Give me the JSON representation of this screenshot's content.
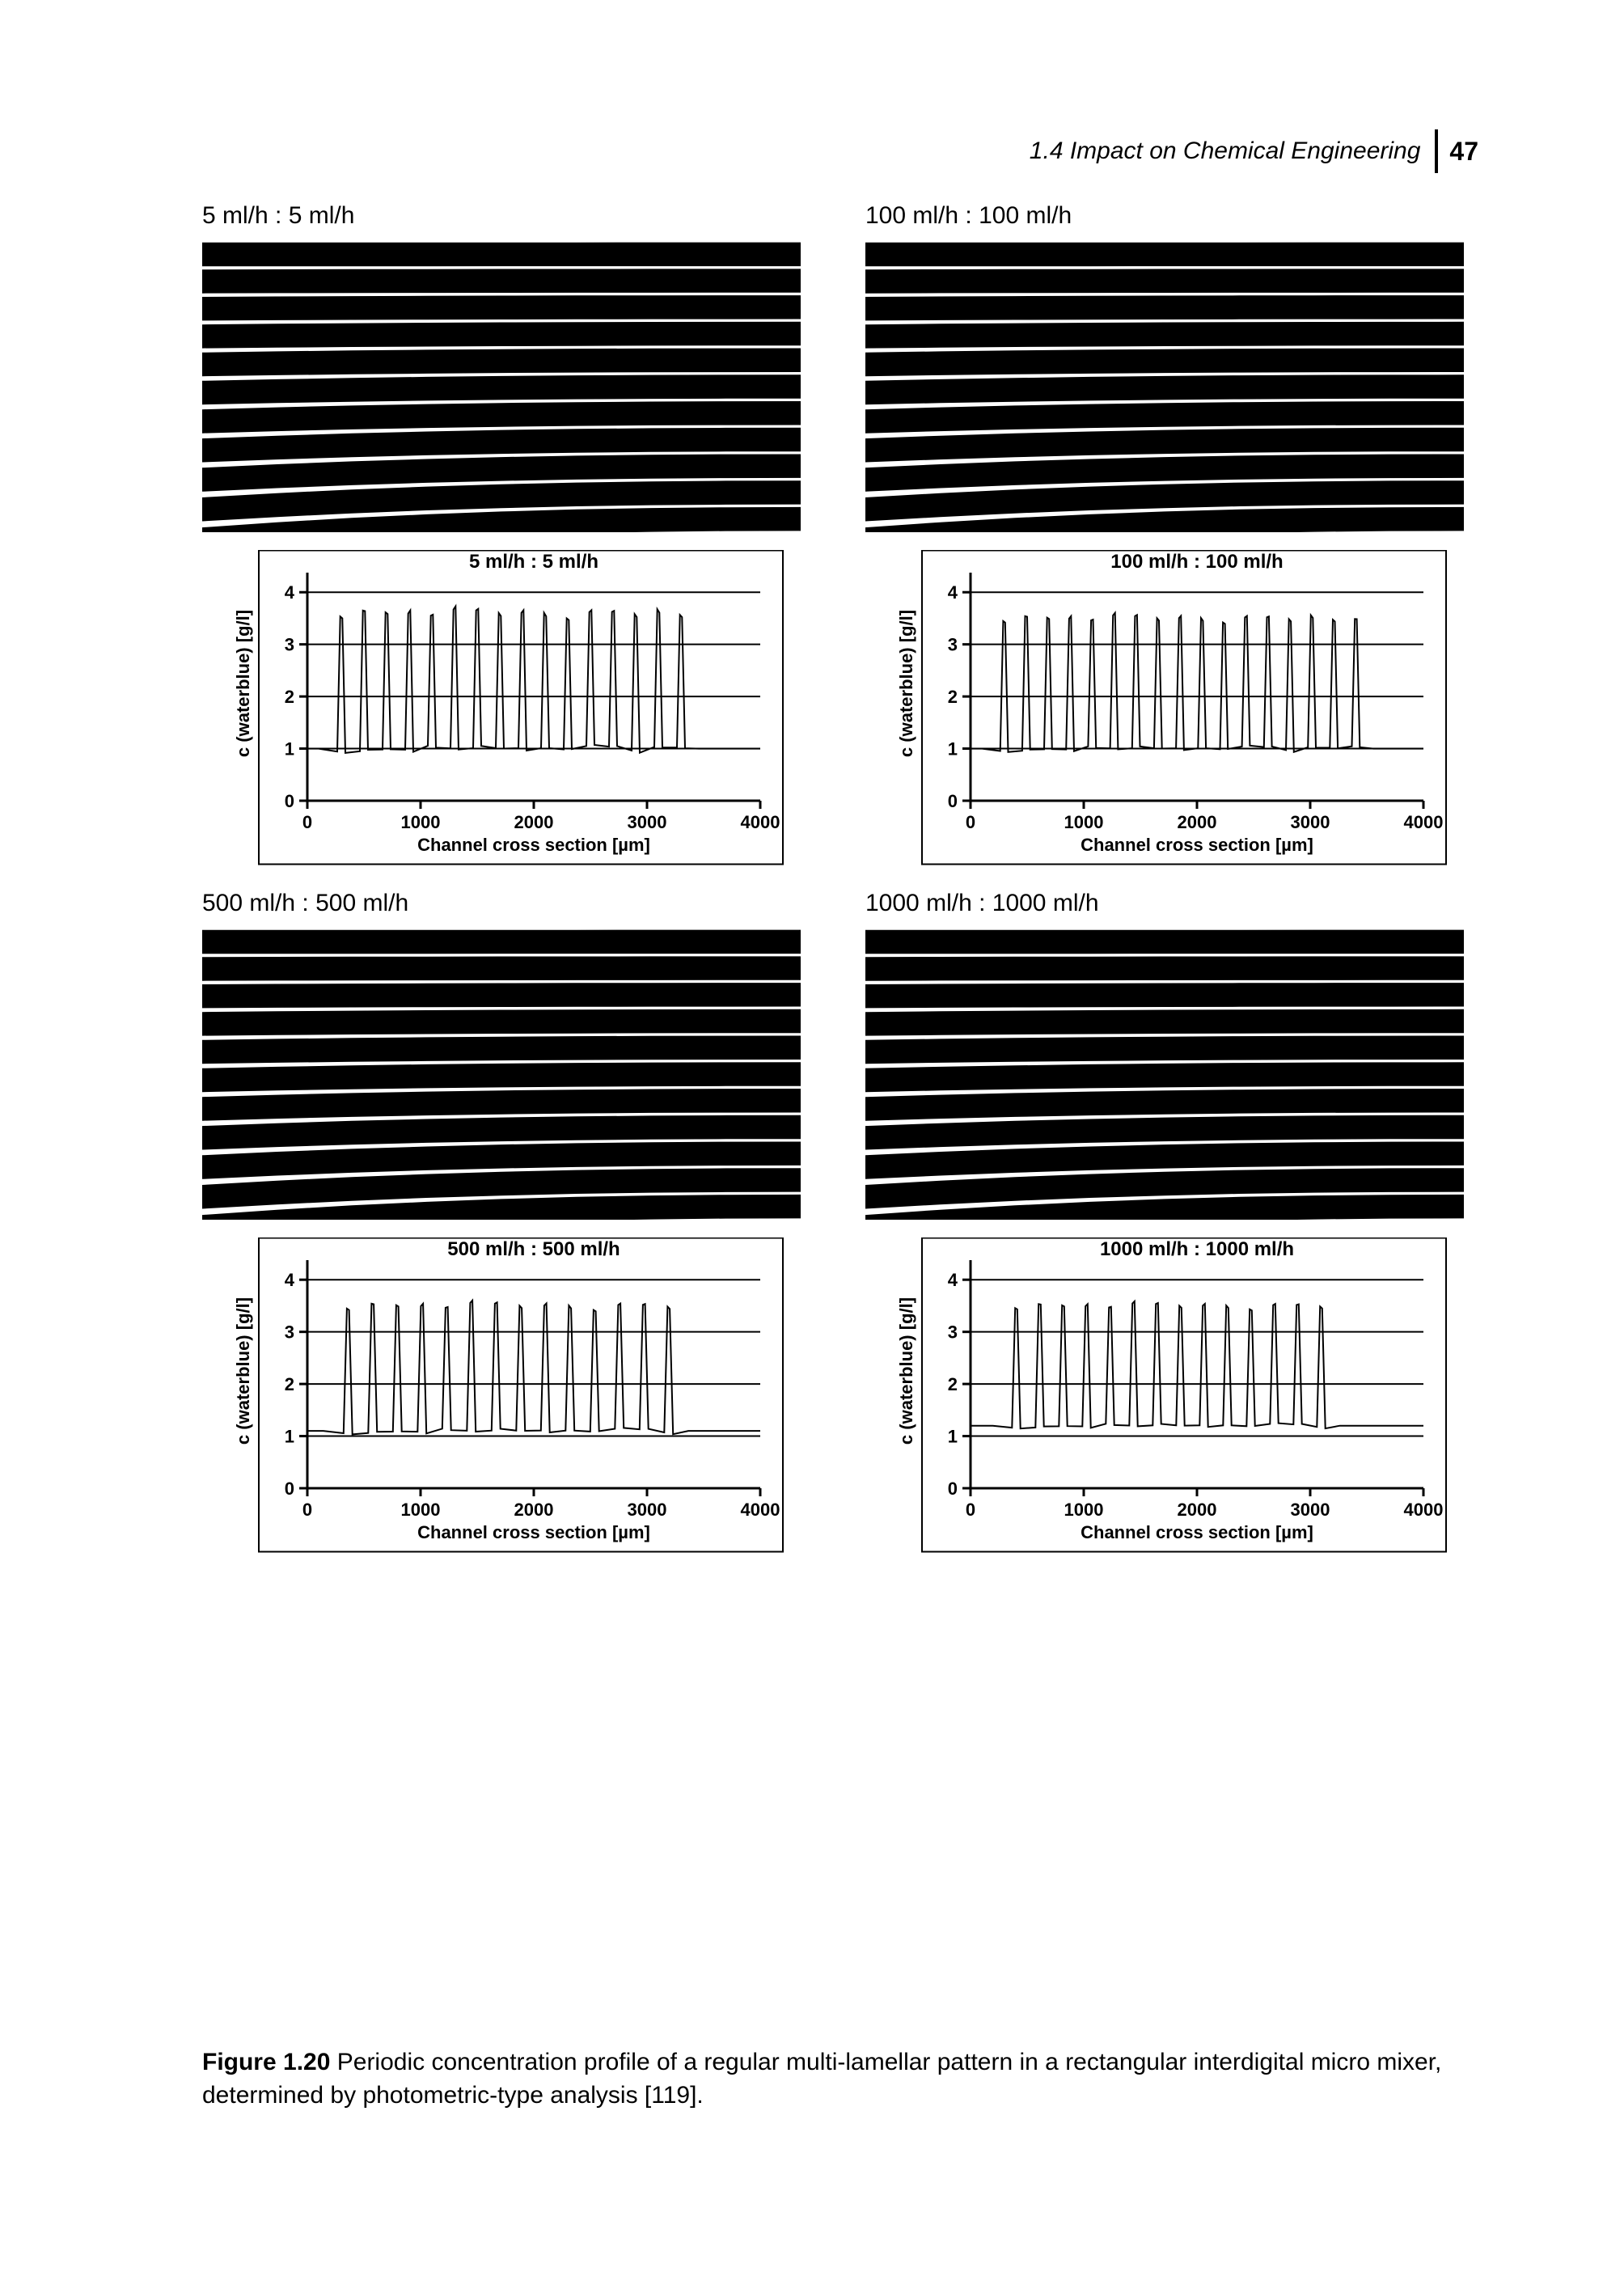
{
  "header": {
    "section": "1.4  Impact on Chemical Engineering",
    "page_number": "47"
  },
  "caption": {
    "label": "Figure 1.20",
    "text": "Periodic concentration profile of a regular multi-lamellar pattern in a rectangular interdigital micro mixer, determined by photometric-type analysis [119]."
  },
  "colors": {
    "background": "#ffffff",
    "ink": "#000000",
    "axis": "#000000",
    "text": "#000000"
  },
  "lamellar": {
    "stripe_count": 11,
    "stripe_thickness": 0.45,
    "colors": {
      "stripe": "#000000",
      "gap": "#ffffff"
    },
    "bottom_curve_amp": 0.35
  },
  "axes": {
    "xlabel": "Channel cross section [µm]",
    "ylabel": "c (waterblue) [g/l]",
    "xlim": [
      0,
      4000
    ],
    "ylim": [
      0,
      4.5
    ],
    "xticks": [
      0,
      1000,
      2000,
      3000,
      4000
    ],
    "yticks": [
      0,
      1,
      2,
      3,
      4
    ],
    "label_fontsize": 22,
    "tick_fontsize": 22,
    "title_fontsize": 24,
    "line_width": 3,
    "data_line_width": 2
  },
  "panels": [
    {
      "id": "p5",
      "label": "5 ml/h : 5 ml/h",
      "chart_title": "5 ml/h : 5 ml/h",
      "n_peaks": 16,
      "x_start": 200,
      "x_end": 3400,
      "y_low": 1.0,
      "y_high": 3.6,
      "noise": 0.15
    },
    {
      "id": "p100",
      "label": "100 ml/h : 100 ml/h",
      "chart_title": "100 ml/h : 100 ml/h",
      "n_peaks": 17,
      "x_start": 200,
      "x_end": 3500,
      "y_low": 1.0,
      "y_high": 3.5,
      "noise": 0.12
    },
    {
      "id": "p500",
      "label": "500 ml/h : 500 ml/h",
      "chart_title": "500 ml/h : 500 ml/h",
      "n_peaks": 14,
      "x_start": 250,
      "x_end": 3300,
      "y_low": 1.1,
      "y_high": 3.5,
      "noise": 0.12
    },
    {
      "id": "p1000",
      "label": "1000 ml/h : 1000 ml/h",
      "chart_title": "1000 ml/h : 1000 ml/h",
      "n_peaks": 14,
      "x_start": 300,
      "x_end": 3200,
      "y_low": 1.2,
      "y_high": 3.5,
      "noise": 0.1
    }
  ]
}
